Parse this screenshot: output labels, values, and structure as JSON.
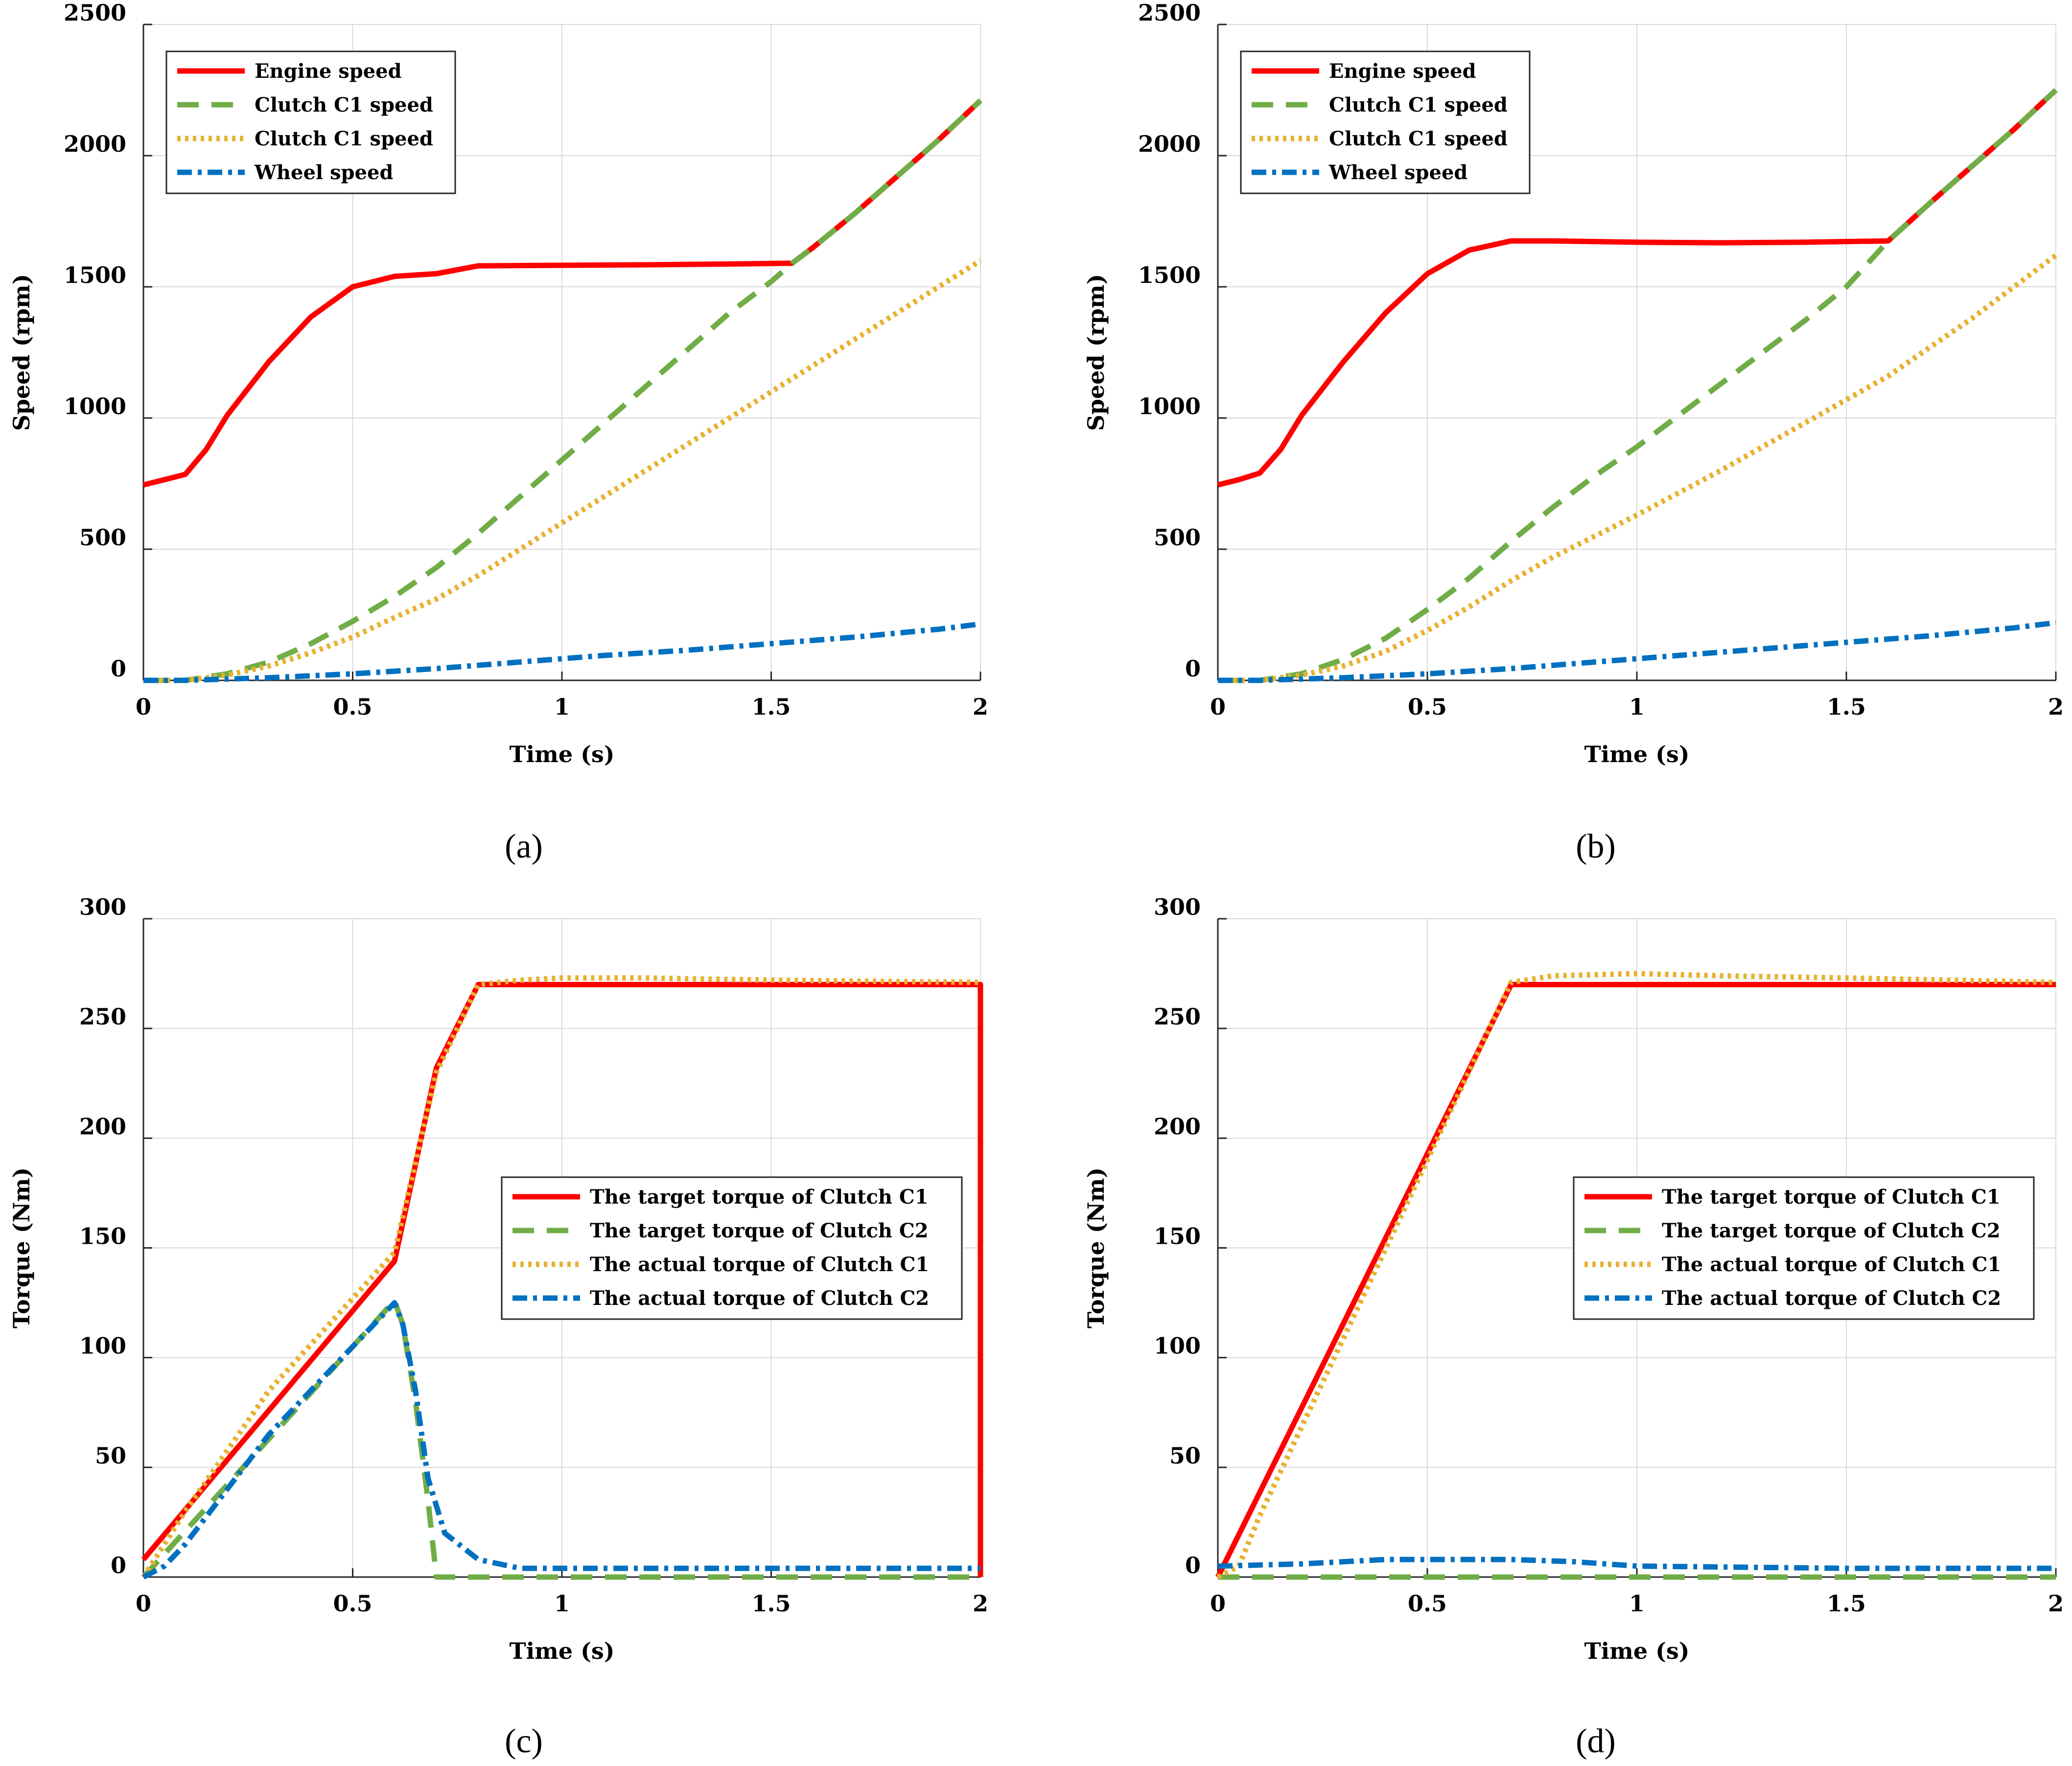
{
  "chart_data": [
    {
      "id": "a",
      "type": "line",
      "panel_label": "(a)",
      "xlabel": "Time (s)",
      "ylabel": "Speed (rpm)",
      "xlim": [
        0,
        2
      ],
      "ylim": [
        0,
        2500
      ],
      "xticks": [
        0,
        0.5,
        1,
        1.5,
        2
      ],
      "yticks": [
        0,
        500,
        1000,
        1500,
        2000,
        2500
      ],
      "xtick_labels": [
        "0",
        "0.5",
        "1",
        "1.5",
        "2"
      ],
      "ytick_labels": [
        "0",
        "500",
        "1000",
        "1500",
        "2000",
        "2500"
      ],
      "grid": true,
      "legend_position": "top-left",
      "series": [
        {
          "name": "Engine speed",
          "color": "#ff0000",
          "style": "solid",
          "x": [
            0,
            0.05,
            0.1,
            0.15,
            0.2,
            0.3,
            0.4,
            0.5,
            0.6,
            0.7,
            0.8,
            1.0,
            1.2,
            1.4,
            1.55,
            1.6,
            1.7,
            1.8,
            1.9,
            2.0
          ],
          "y": [
            745,
            765,
            785,
            880,
            1010,
            1215,
            1385,
            1500,
            1540,
            1550,
            1580,
            1582,
            1584,
            1587,
            1590,
            1650,
            1780,
            1920,
            2060,
            2210
          ]
        },
        {
          "name": "Clutch C1 speed",
          "color": "#70ad47",
          "style": "dashed",
          "x": [
            0,
            0.1,
            0.2,
            0.3,
            0.4,
            0.5,
            0.6,
            0.7,
            0.8,
            0.9,
            1.0,
            1.1,
            1.2,
            1.3,
            1.4,
            1.5,
            1.55,
            1.6,
            1.7,
            1.8,
            1.9,
            2.0
          ],
          "y": [
            0,
            0,
            25,
            70,
            140,
            225,
            320,
            430,
            560,
            700,
            840,
            980,
            1120,
            1260,
            1400,
            1520,
            1590,
            1650,
            1780,
            1920,
            2060,
            2210
          ]
        },
        {
          "name": "Clutch C1 speed",
          "color": "#e8b130",
          "style": "dotted",
          "x": [
            0,
            0.1,
            0.2,
            0.3,
            0.4,
            0.5,
            0.6,
            0.7,
            0.8,
            0.9,
            1.0,
            1.2,
            1.4,
            1.6,
            1.8,
            2.0
          ],
          "y": [
            0,
            0,
            20,
            55,
            105,
            165,
            240,
            310,
            400,
            500,
            600,
            800,
            1000,
            1200,
            1400,
            1600
          ]
        },
        {
          "name": "Wheel speed",
          "color": "#0070c0",
          "style": "dashdot",
          "x": [
            0,
            0.1,
            0.3,
            0.5,
            0.7,
            0.9,
            1.1,
            1.3,
            1.5,
            1.7,
            1.9,
            2.0
          ],
          "y": [
            0,
            0,
            10,
            25,
            45,
            70,
            95,
            115,
            140,
            165,
            195,
            215
          ]
        }
      ]
    },
    {
      "id": "b",
      "type": "line",
      "panel_label": "(b)",
      "xlabel": "Time (s)",
      "ylabel": "Speed (rpm)",
      "xlim": [
        0,
        2
      ],
      "ylim": [
        0,
        2500
      ],
      "xticks": [
        0,
        0.5,
        1,
        1.5,
        2
      ],
      "yticks": [
        0,
        500,
        1000,
        1500,
        2000,
        2500
      ],
      "xtick_labels": [
        "0",
        "0.5",
        "1",
        "1.5",
        "2"
      ],
      "ytick_labels": [
        "0",
        "500",
        "1000",
        "1500",
        "2000",
        "2500"
      ],
      "grid": true,
      "legend_position": "top-left",
      "series": [
        {
          "name": "Engine speed",
          "color": "#ff0000",
          "style": "solid",
          "x": [
            0,
            0.05,
            0.1,
            0.15,
            0.2,
            0.3,
            0.4,
            0.5,
            0.6,
            0.7,
            0.8,
            1.0,
            1.2,
            1.4,
            1.6,
            1.7,
            1.8,
            1.9,
            2.0
          ],
          "y": [
            745,
            765,
            790,
            880,
            1010,
            1215,
            1400,
            1550,
            1640,
            1675,
            1675,
            1670,
            1668,
            1670,
            1675,
            1820,
            1960,
            2100,
            2250
          ]
        },
        {
          "name": "Clutch C1 speed",
          "color": "#70ad47",
          "style": "dashed",
          "x": [
            0,
            0.1,
            0.2,
            0.3,
            0.4,
            0.5,
            0.6,
            0.7,
            0.8,
            0.9,
            1.0,
            1.1,
            1.2,
            1.3,
            1.4,
            1.5,
            1.6,
            1.7,
            1.8,
            1.9,
            2.0
          ],
          "y": [
            0,
            0,
            25,
            80,
            160,
            270,
            390,
            530,
            660,
            780,
            890,
            1010,
            1130,
            1250,
            1370,
            1500,
            1675,
            1820,
            1960,
            2100,
            2250
          ]
        },
        {
          "name": "Clutch C1 speed",
          "color": "#e8b130",
          "style": "dotted",
          "x": [
            0,
            0.1,
            0.2,
            0.3,
            0.4,
            0.5,
            0.6,
            0.7,
            0.8,
            0.9,
            1.0,
            1.2,
            1.4,
            1.6,
            1.8,
            2.0
          ],
          "y": [
            0,
            0,
            20,
            55,
            110,
            190,
            280,
            380,
            470,
            550,
            630,
            800,
            980,
            1160,
            1380,
            1620
          ]
        },
        {
          "name": "Wheel speed",
          "color": "#0070c0",
          "style": "dashdot",
          "x": [
            0,
            0.1,
            0.3,
            0.5,
            0.7,
            0.9,
            1.1,
            1.3,
            1.5,
            1.7,
            1.9,
            2.0
          ],
          "y": [
            0,
            0,
            10,
            25,
            45,
            70,
            95,
            120,
            145,
            170,
            200,
            220
          ]
        }
      ]
    },
    {
      "id": "c",
      "type": "line",
      "panel_label": "(c)",
      "xlabel": "Time (s)",
      "ylabel": "Torque (Nm)",
      "xlim": [
        0,
        2
      ],
      "ylim": [
        0,
        300
      ],
      "xticks": [
        0,
        0.5,
        1,
        1.5,
        2
      ],
      "yticks": [
        0,
        50,
        100,
        150,
        200,
        250,
        300
      ],
      "xtick_labels": [
        "0",
        "0.5",
        "1",
        "1.5",
        "2"
      ],
      "ytick_labels": [
        "0",
        "50",
        "100",
        "150",
        "200",
        "250",
        "300"
      ],
      "grid": true,
      "legend_position": "center-right",
      "series": [
        {
          "name": "The target torque of Clutch C1",
          "color": "#ff0000",
          "style": "solid",
          "x": [
            0,
            0.6,
            0.7,
            0.8,
            1.0,
            1.5,
            2.0,
            2.0
          ],
          "y": [
            8,
            144,
            232,
            270,
            270,
            270,
            270,
            0
          ]
        },
        {
          "name": "The target torque of Clutch C2",
          "color": "#70ad47",
          "style": "dashed",
          "x": [
            0,
            0.6,
            0.62,
            0.65,
            0.68,
            0.7,
            1.0,
            1.5,
            2.0
          ],
          "y": [
            0,
            126,
            115,
            80,
            35,
            0,
            0,
            0,
            0
          ]
        },
        {
          "name": "The actual torque of Clutch C1",
          "color": "#e8b130",
          "style": "dotted",
          "x": [
            0,
            0.05,
            0.1,
            0.3,
            0.6,
            0.7,
            0.8,
            0.9,
            1.0,
            1.2,
            1.5,
            2.0
          ],
          "y": [
            0,
            15,
            30,
            85,
            148,
            230,
            270,
            272,
            273,
            273,
            272,
            271
          ]
        },
        {
          "name": "The actual torque of Clutch C2",
          "color": "#0070c0",
          "style": "dashdot",
          "x": [
            0,
            0.05,
            0.1,
            0.3,
            0.6,
            0.62,
            0.65,
            0.68,
            0.72,
            0.8,
            0.9,
            1.0,
            1.5,
            2.0
          ],
          "y": [
            0,
            5,
            15,
            65,
            125,
            115,
            85,
            45,
            20,
            8,
            4,
            4,
            4,
            4
          ]
        }
      ]
    },
    {
      "id": "d",
      "type": "line",
      "panel_label": "(d)",
      "xlabel": "Time (s)",
      "ylabel": "Torque (Nm)",
      "xlim": [
        0,
        2
      ],
      "ylim": [
        0,
        300
      ],
      "xticks": [
        0,
        0.5,
        1,
        1.5,
        2
      ],
      "yticks": [
        0,
        50,
        100,
        150,
        200,
        250,
        300
      ],
      "xtick_labels": [
        "0",
        "0.5",
        "1",
        "1.5",
        "2"
      ],
      "ytick_labels": [
        "0",
        "50",
        "100",
        "150",
        "200",
        "250",
        "300"
      ],
      "grid": true,
      "legend_position": "center-right",
      "series": [
        {
          "name": "The target torque of Clutch C1",
          "color": "#ff0000",
          "style": "solid",
          "x": [
            0,
            0.7,
            1.0,
            1.5,
            2.0
          ],
          "y": [
            0,
            270,
            270,
            270,
            270
          ]
        },
        {
          "name": "The target torque of Clutch C2",
          "color": "#70ad47",
          "style": "dashed",
          "x": [
            0,
            0.5,
            1.0,
            1.5,
            2.0
          ],
          "y": [
            0,
            0,
            0,
            0,
            0
          ]
        },
        {
          "name": "The actual torque of Clutch C1",
          "color": "#e8b130",
          "style": "dotted",
          "x": [
            0,
            0.05,
            0.1,
            0.7,
            0.8,
            1.0,
            1.2,
            1.5,
            2.0
          ],
          "y": [
            0,
            5,
            28,
            271,
            274,
            275,
            274,
            273,
            271
          ]
        },
        {
          "name": "The actual torque of Clutch C2",
          "color": "#0070c0",
          "style": "dashdot",
          "x": [
            0,
            0.2,
            0.4,
            0.5,
            0.7,
            0.85,
            1.0,
            1.5,
            2.0
          ],
          "y": [
            5,
            6,
            8,
            8,
            8,
            7,
            5,
            4,
            4
          ]
        }
      ]
    }
  ]
}
